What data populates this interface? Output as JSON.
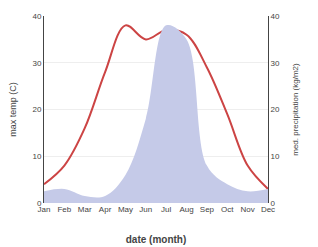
{
  "chart_data": {
    "type": "line",
    "xlabel": "date (month)",
    "ylabel": "max temp (C)",
    "y2label": "med. precipitation (kg/m2)",
    "categories": [
      "Jan",
      "Feb",
      "Mar",
      "Apr",
      "May",
      "Jun",
      "Jul",
      "Aug",
      "Sep",
      "Oct",
      "Nov",
      "Dec"
    ],
    "series": [
      {
        "type": "area",
        "axis": "y2",
        "color": "#c5cae8",
        "values": [
          2.5,
          3,
          1.5,
          1.5,
          6,
          18,
          38,
          35,
          8,
          4,
          2.5,
          3
        ]
      },
      {
        "type": "line",
        "color": "#cc4444",
        "values": [
          4,
          8,
          16,
          28,
          38,
          35,
          37,
          36,
          29,
          19,
          8,
          3
        ]
      }
    ],
    "ylim": [
      0,
      40
    ],
    "yticks": [
      0,
      10,
      20,
      30,
      40
    ],
    "y2lim": [
      0,
      40
    ],
    "y2ticks": [
      0,
      10,
      20,
      30,
      40
    ],
    "grid": true
  }
}
